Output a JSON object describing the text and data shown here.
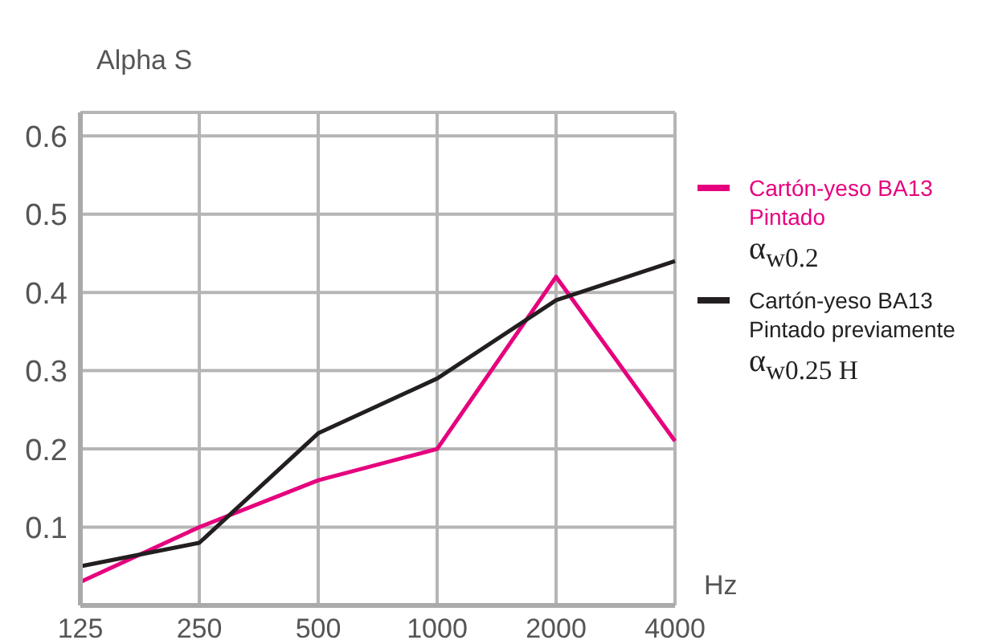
{
  "chart_data": {
    "type": "line",
    "ylabel": "Alpha S",
    "xlabel": "Hz",
    "categories": [
      "125",
      "250",
      "500",
      "1000",
      "2000",
      "4000"
    ],
    "series": [
      {
        "name": "Cartón-yeso BA13 Pintado",
        "color": "#e6007e",
        "values": [
          0.03,
          0.1,
          0.16,
          0.2,
          0.42,
          0.21
        ]
      },
      {
        "name": "Cartón-yeso BA13 Pintado previamente",
        "color": "#231f20",
        "values": [
          0.05,
          0.08,
          0.22,
          0.29,
          0.39,
          0.44
        ]
      }
    ],
    "annotations": [
      "α$_{w0.2}$",
      "α$_{w0.25 H}$"
    ],
    "ylim": [
      0,
      0.63
    ],
    "yticks": [
      0.1,
      0.2,
      0.3,
      0.4,
      0.5,
      0.6
    ],
    "grid": true,
    "legend": "right",
    "marker": "none",
    "line_style": "solid"
  }
}
